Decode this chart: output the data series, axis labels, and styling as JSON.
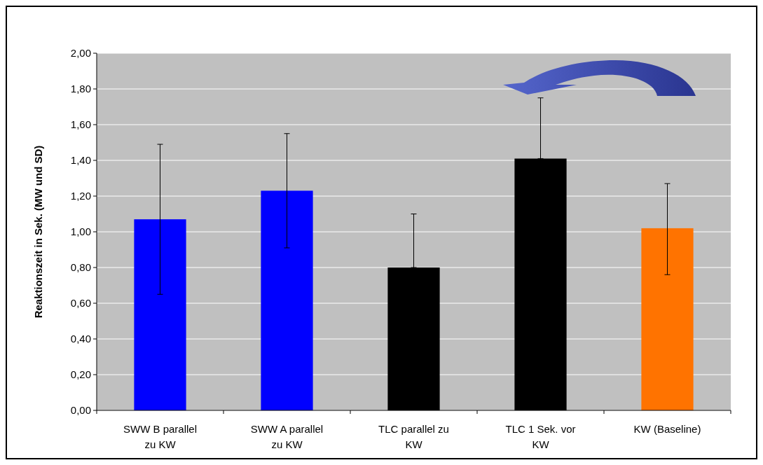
{
  "chart_data": {
    "type": "bar",
    "ylabel": "Reaktionszeit in Sek. (MW und SD)",
    "categories": [
      "SWW B parallel zu KW",
      "SWW A parallel zu KW",
      "TLC parallel zu KW",
      "TLC 1 Sek. vor KW",
      "KW (Baseline)"
    ],
    "values": [
      1.07,
      1.23,
      0.8,
      1.41,
      1.02
    ],
    "colors": [
      "#0000ff",
      "#0000ff",
      "#000000",
      "#000000",
      "#ff7300"
    ],
    "errors": [
      [
        0.65,
        1.49
      ],
      [
        0.91,
        1.55
      ],
      [
        0.8,
        1.1
      ],
      [
        1.41,
        1.75
      ],
      [
        0.76,
        1.27
      ]
    ],
    "ylim": [
      0,
      2
    ],
    "yticks": [
      {
        "value": 0,
        "label": "0,00"
      },
      {
        "value": 0.2,
        "label": "0,20"
      },
      {
        "value": 0.4,
        "label": "0,40"
      },
      {
        "value": 0.6,
        "label": "0,60"
      },
      {
        "value": 0.8,
        "label": "0,80"
      },
      {
        "value": 1,
        "label": "1,00"
      },
      {
        "value": 1.2,
        "label": "1,20"
      },
      {
        "value": 1.4,
        "label": "1,40"
      },
      {
        "value": 1.6,
        "label": "1,60"
      },
      {
        "value": 1.8,
        "label": "1,80"
      },
      {
        "value": 2,
        "label": "2,00"
      }
    ],
    "grid": "y"
  }
}
